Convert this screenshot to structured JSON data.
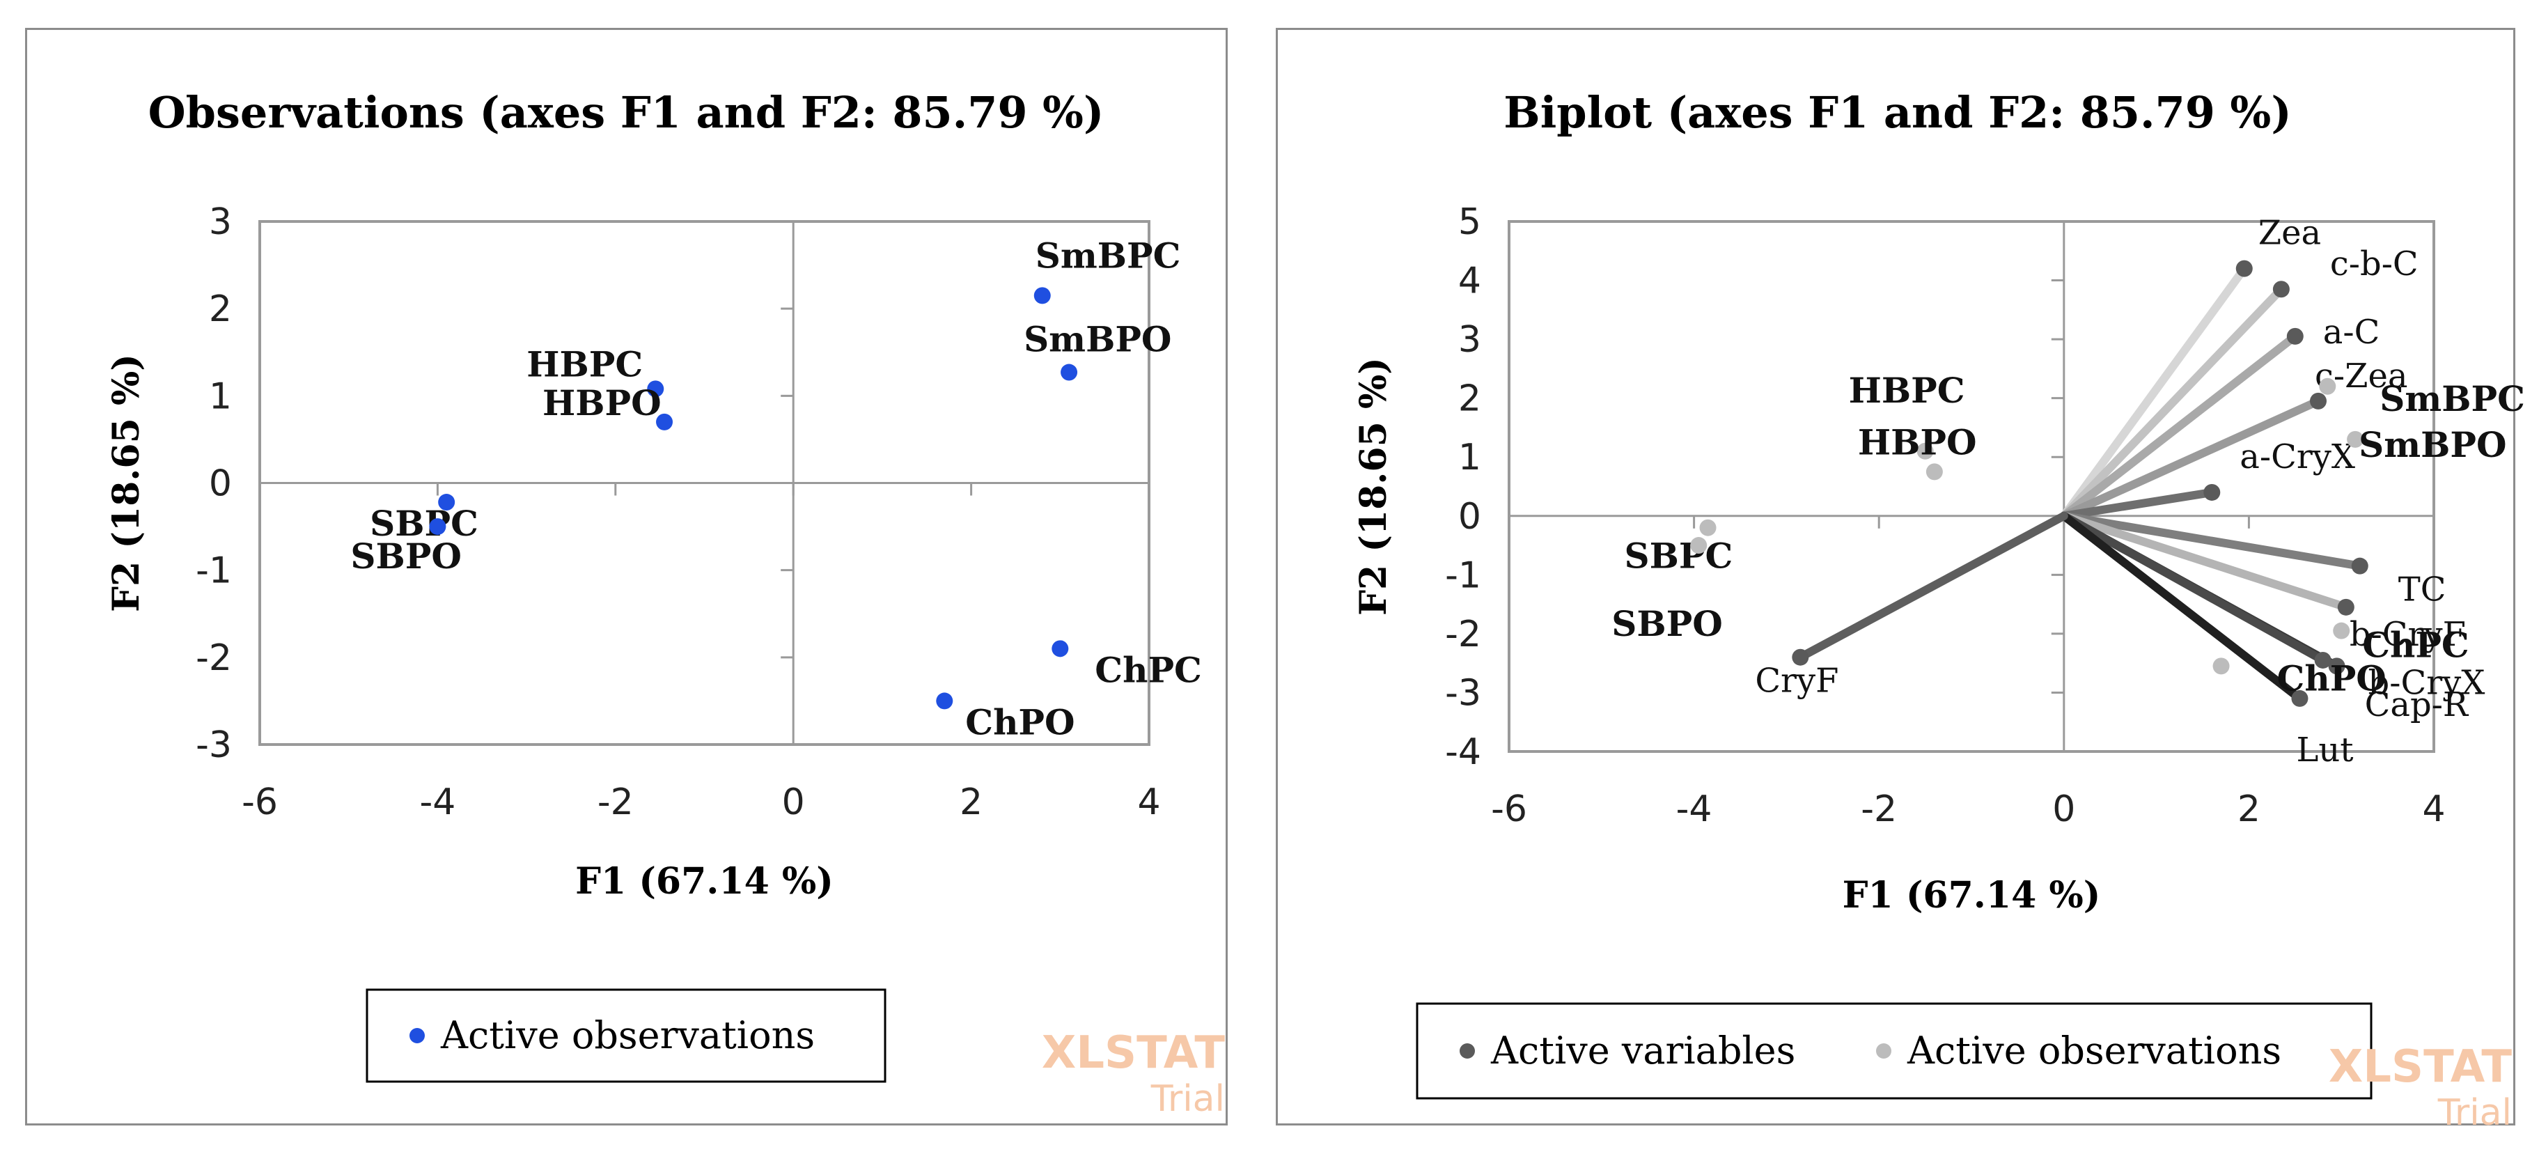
{
  "chart_data": [
    {
      "type": "scatter",
      "title": "Observations (axes F1 and F2: 85.79 %)",
      "xlabel": "F1 (67.14 %)",
      "ylabel": "F2 (18.65 %)",
      "xlim": [
        -6,
        4
      ],
      "ylim": [
        -3,
        3
      ],
      "xticks": [
        "-6",
        "-4",
        "-2",
        "0",
        "2",
        "4"
      ],
      "yticks": [
        "-3",
        "-2",
        "-1",
        "0",
        "1",
        "2",
        "3"
      ],
      "grid": false,
      "legend": {
        "position": "bottom",
        "entries": [
          "Active observations"
        ]
      },
      "series": [
        {
          "name": "Active observations",
          "color": "#1f4fe0",
          "points": [
            {
              "label": "SmBPC",
              "x": 2.8,
              "y": 2.15
            },
            {
              "label": "SmBPO",
              "x": 3.1,
              "y": 1.27
            },
            {
              "label": "HBPC",
              "x": -1.55,
              "y": 1.08
            },
            {
              "label": "HBPO",
              "x": -1.45,
              "y": 0.7
            },
            {
              "label": "SBPC",
              "x": -3.9,
              "y": -0.22
            },
            {
              "label": "SBPO",
              "x": -4.0,
              "y": -0.5
            },
            {
              "label": "ChPC",
              "x": 3.0,
              "y": -1.9
            },
            {
              "label": "ChPO",
              "x": 1.7,
              "y": -2.5
            }
          ]
        }
      ],
      "watermark": {
        "line1": "XLSTAT",
        "line2": "Trial"
      }
    },
    {
      "type": "scatter",
      "title": "Biplot (axes F1 and F2: 85.79 %)",
      "xlabel": "F1 (67.14 %)",
      "ylabel": "F2 (18.65 %)",
      "xlim": [
        -6,
        4
      ],
      "ylim": [
        -4,
        5
      ],
      "xticks": [
        "-6",
        "-4",
        "-2",
        "0",
        "2",
        "4"
      ],
      "yticks": [
        "-4",
        "-3",
        "-2",
        "-1",
        "0",
        "1",
        "2",
        "3",
        "4",
        "5"
      ],
      "grid": false,
      "legend": {
        "position": "bottom",
        "entries": [
          "Active variables",
          "Active observations"
        ]
      },
      "series": [
        {
          "name": "Active variables",
          "color": "#5a5a5a",
          "points": [
            {
              "label": "Zea",
              "x": 1.95,
              "y": 4.2,
              "shade": "#d6d6d6"
            },
            {
              "label": "c-b-C",
              "x": 2.35,
              "y": 3.85,
              "shade": "#c2c2c2"
            },
            {
              "label": "a-C",
              "x": 2.5,
              "y": 3.05,
              "shade": "#a9a9a9"
            },
            {
              "label": "c-Zea",
              "x": 2.75,
              "y": 1.95,
              "shade": "#9a9a9a"
            },
            {
              "label": "a-CryX",
              "x": 1.6,
              "y": 0.4,
              "shade": "#6e6e6e"
            },
            {
              "label": "TC",
              "x": 3.2,
              "y": -0.85,
              "shade": "#7e7e7e"
            },
            {
              "label": "b-CryF",
              "x": 3.05,
              "y": -1.55,
              "shade": "#b4b4b4"
            },
            {
              "label": "b-CryX",
              "x": 2.95,
              "y": -2.55,
              "shade": "#3a3a3a"
            },
            {
              "label": "Cap-R",
              "x": 2.8,
              "y": -2.45,
              "shade": "#4a4a4a"
            },
            {
              "label": "Lut",
              "x": 2.55,
              "y": -3.1,
              "shade": "#202020"
            },
            {
              "label": "CryF",
              "x": -2.85,
              "y": -2.4,
              "shade": "#5e5e5e"
            }
          ]
        },
        {
          "name": "Active observations",
          "color": "#bcbcbc",
          "points": [
            {
              "label": "SmBPC",
              "x": 2.85,
              "y": 2.2
            },
            {
              "label": "SmBPO",
              "x": 3.15,
              "y": 1.3
            },
            {
              "label": "HBPC",
              "x": -1.5,
              "y": 1.1
            },
            {
              "label": "HBPO",
              "x": -1.4,
              "y": 0.75
            },
            {
              "label": "SBPC",
              "x": -3.85,
              "y": -0.2
            },
            {
              "label": "SBPO",
              "x": -3.95,
              "y": -0.5
            },
            {
              "label": "ChPC",
              "x": 3.0,
              "y": -1.95
            },
            {
              "label": "ChPO",
              "x": 1.7,
              "y": -2.55
            }
          ]
        }
      ],
      "watermark": {
        "line1": "XLSTAT",
        "line2": "Trial"
      }
    }
  ]
}
